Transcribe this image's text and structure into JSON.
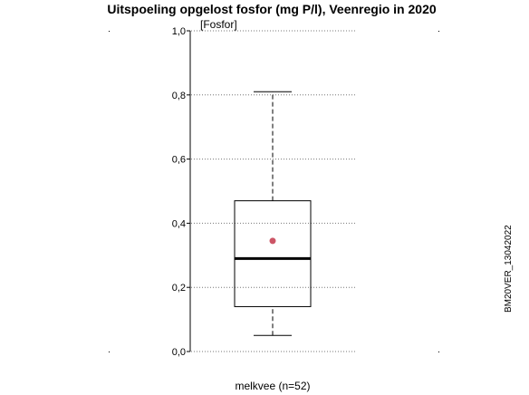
{
  "chart_data": {
    "type": "box",
    "title": "Uitspoeling opgelost fosfor (mg P/l), Veenregio in 2020",
    "ylabel": "[Fosfor]",
    "ylim": [
      0,
      1.0
    ],
    "yticks": [
      {
        "value": 0.0,
        "label": "0,0"
      },
      {
        "value": 0.2,
        "label": "0,2"
      },
      {
        "value": 0.4,
        "label": "0,4"
      },
      {
        "value": 0.6,
        "label": "0,6"
      },
      {
        "value": 0.8,
        "label": "0,8"
      },
      {
        "value": 1.0,
        "label": "1,0"
      }
    ],
    "grid": true,
    "categories": [
      "melkvee (n=52)"
    ],
    "boxes": [
      {
        "category": "melkvee (n=52)",
        "whisker_low": 0.05,
        "q1": 0.14,
        "median": 0.29,
        "q3": 0.47,
        "whisker_high": 0.81,
        "mean": 0.345
      }
    ],
    "colors": {
      "mean_marker": "#cc5566"
    }
  },
  "side_label": "BM20VER_13042022"
}
